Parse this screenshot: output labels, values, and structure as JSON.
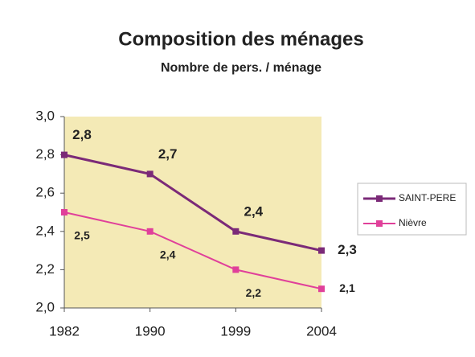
{
  "chart_data": {
    "type": "line",
    "title": "Composition des ménages",
    "subtitle": "Nombre de pers. / ménage",
    "categories": [
      "1982",
      "1990",
      "1999",
      "2004"
    ],
    "series": [
      {
        "name": "SAINT-PERE",
        "color": "#7b2a78",
        "values": [
          2.8,
          2.7,
          2.4,
          2.3
        ],
        "value_labels": [
          "2,8",
          "2,7",
          "2,4",
          "2,3"
        ]
      },
      {
        "name": "Nièvre",
        "color": "#e0409a",
        "values": [
          2.5,
          2.4,
          2.2,
          2.1
        ],
        "value_labels": [
          "2,5",
          "2,4",
          "2,2",
          "2,1"
        ]
      }
    ],
    "ylim": [
      2.0,
      3.0
    ],
    "yticks": [
      {
        "value": 2.0,
        "label": "2,0"
      },
      {
        "value": 2.2,
        "label": "2,2"
      },
      {
        "value": 2.4,
        "label": "2,4"
      },
      {
        "value": 2.6,
        "label": "2,6"
      },
      {
        "value": 2.8,
        "label": "2,8"
      },
      {
        "value": 3.0,
        "label": "3,0"
      }
    ],
    "legend": "right"
  }
}
